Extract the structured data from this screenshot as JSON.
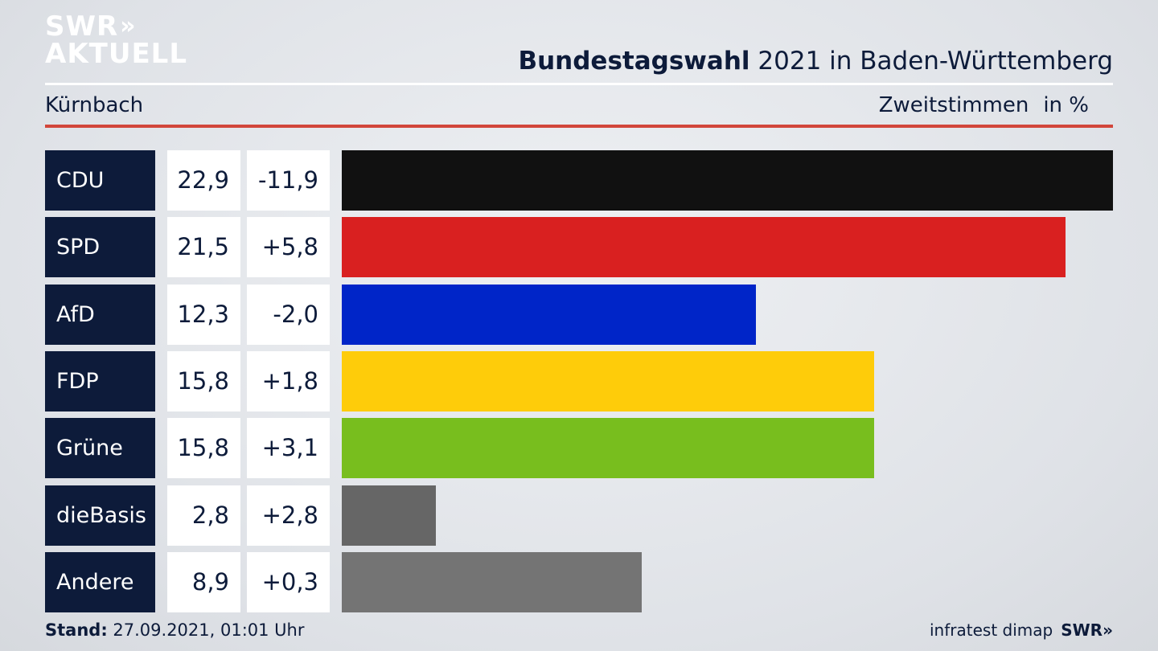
{
  "logo": {
    "line1": "SWR",
    "arrows": "»",
    "line2": "AKTUELL"
  },
  "header": {
    "title_bold": "Bundestagswahl",
    "title_rest": " 2021 in Baden-Württemberg",
    "region": "Kürnbach",
    "measure": "Zweitstimmen",
    "unit": "in %"
  },
  "chart_data": {
    "type": "bar",
    "orientation": "horizontal",
    "categories": [
      "CDU",
      "SPD",
      "AfD",
      "FDP",
      "Grüne",
      "dieBasis",
      "Andere"
    ],
    "series": [
      {
        "values": [
          22.9,
          21.5,
          12.3,
          15.8,
          15.8,
          2.8,
          8.9
        ]
      }
    ],
    "changes": [
      "-11,9",
      "+5,8",
      "-2,0",
      "+1,8",
      "+3,1",
      "+2,8",
      "+0,3"
    ],
    "value_labels": [
      "22,9",
      "21,5",
      "12,3",
      "15,8",
      "15,8",
      "2,8",
      "8,9"
    ],
    "colors": [
      "#111111",
      "#d92020",
      "#0025c8",
      "#fecc0a",
      "#78be1e",
      "#666666",
      "#747474"
    ],
    "xlim": [
      0,
      22.9
    ],
    "grid": false,
    "legend": "none"
  },
  "footer": {
    "stand_label": "Stand:",
    "stand_value": " 27.09.2021, 01:01 Uhr",
    "source": "infratest dimap",
    "source_brand": "SWR»"
  }
}
